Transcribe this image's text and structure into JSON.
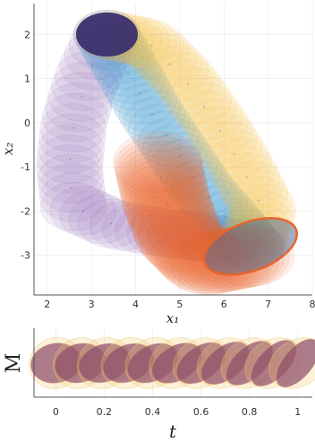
{
  "chart_data": [
    {
      "type": "scatter",
      "title": "",
      "xlabel": "x₁",
      "ylabel": "x₂",
      "xlim": [
        1.7,
        8.0
      ],
      "ylim": [
        -3.9,
        2.7
      ],
      "xticks": [
        2,
        3,
        4,
        5,
        6,
        7,
        8
      ],
      "yticks": [
        -3,
        -2,
        -1,
        0,
        1,
        2
      ],
      "x_tick_labels": [
        "2",
        "3",
        "4",
        "5",
        "6",
        "7",
        "8"
      ],
      "y_tick_labels": [
        "-3",
        "-2",
        "-1",
        "0",
        "1",
        "2"
      ],
      "grid": true,
      "description_kind": "ellipse tube (reachable sets over time)",
      "series": [
        {
          "color_hint": "purple",
          "color": "#8b5fb0",
          "centers": [
            [
              3.35,
              2.0
            ],
            [
              2.9,
              1.0
            ],
            [
              2.6,
              0.0
            ],
            [
              2.5,
              -1.0
            ],
            [
              2.6,
              -1.9
            ],
            [
              3.5,
              -2.3
            ],
            [
              4.7,
              -2.5
            ],
            [
              5.6,
              -2.6
            ],
            [
              6.6,
              -2.8
            ]
          ],
          "rx": 0.75,
          "ry": 0.55
        },
        {
          "color_hint": "blue",
          "color": "#2e8fcf",
          "centers": [
            [
              3.35,
              2.0
            ],
            [
              3.8,
              1.2
            ],
            [
              4.3,
              0.3
            ],
            [
              4.9,
              -0.6
            ],
            [
              5.5,
              -1.5
            ],
            [
              6.2,
              -2.3
            ],
            [
              6.6,
              -2.8
            ]
          ],
          "rx": 0.75,
          "ry": 0.55
        },
        {
          "color_hint": "yellow",
          "color": "#f2b632",
          "centers": [
            [
              3.35,
              2.0
            ],
            [
              4.3,
              1.8
            ],
            [
              5.1,
              1.0
            ],
            [
              5.8,
              0.0
            ],
            [
              6.4,
              -1.0
            ],
            [
              6.9,
              -2.0
            ],
            [
              6.6,
              -2.8
            ]
          ],
          "rx": 0.75,
          "ry": 0.55
        },
        {
          "color_hint": "orange",
          "color": "#e8642a",
          "centers": [
            [
              4.5,
              -0.9
            ],
            [
              4.7,
              -1.8
            ],
            [
              5.0,
              -2.6
            ],
            [
              5.6,
              -3.2
            ],
            [
              6.6,
              -3.0
            ]
          ],
          "rx": 1.0,
          "ry": 0.7
        }
      ],
      "initial_ellipse": {
        "center": [
          3.35,
          2.0
        ],
        "rx": 0.7,
        "ry": 0.5,
        "color": "#3b2f6e"
      },
      "final_ellipse": {
        "center": [
          6.6,
          -2.8
        ],
        "rx": 1.1,
        "ry": 0.55,
        "color": "#5a6a8a"
      }
    },
    {
      "type": "scatter",
      "title": "",
      "xlabel": "t",
      "ylabel": "M",
      "xlim": [
        -0.09,
        1.06
      ],
      "xticks": [
        0,
        0.2,
        0.4,
        0.6,
        0.8,
        1
      ],
      "x_tick_labels": [
        "0",
        "0.2",
        "0.4",
        "0.6",
        "0.8",
        "1"
      ],
      "grid": true,
      "description_kind": "ellipse glyph per time step",
      "t": [
        0,
        0.1,
        0.2,
        0.3,
        0.4,
        0.5,
        0.6,
        0.7,
        0.8,
        0.9,
        1.0
      ],
      "glyph_color": "#8a4a6a",
      "halo_color": "#f2c96a"
    }
  ]
}
